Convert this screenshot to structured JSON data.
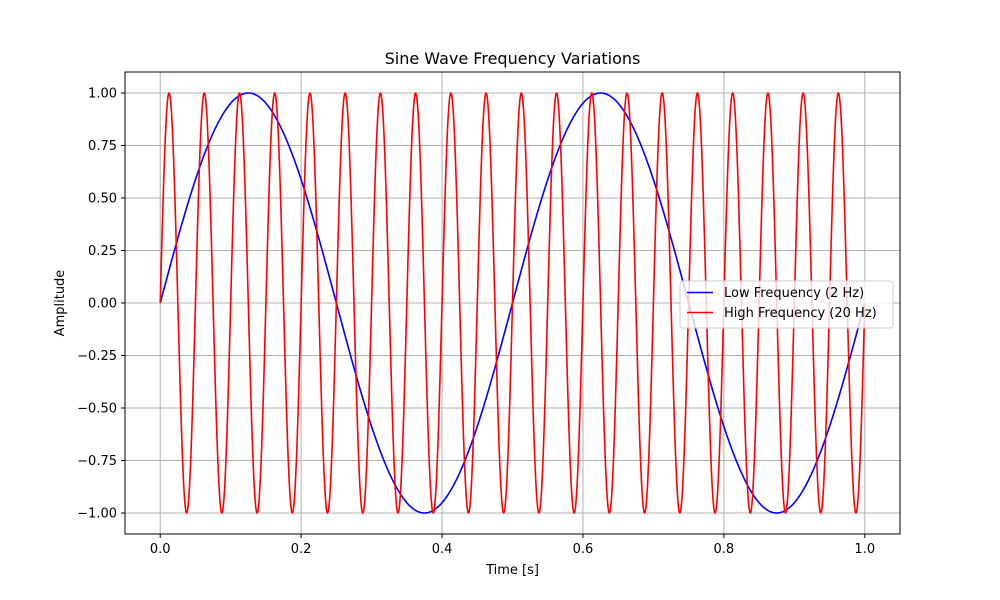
{
  "chart_data": {
    "type": "line",
    "title": "Sine Wave Frequency Variations",
    "xlabel": "Time [s]",
    "ylabel": "Amplitude",
    "xlim": [
      -0.05,
      1.05
    ],
    "ylim": [
      -1.1,
      1.1
    ],
    "grid": true,
    "legend_position": "center-right",
    "x_ticks": [
      {
        "value": 0.0,
        "label": "0.0"
      },
      {
        "value": 0.2,
        "label": "0.2"
      },
      {
        "value": 0.4,
        "label": "0.4"
      },
      {
        "value": 0.6,
        "label": "0.6"
      },
      {
        "value": 0.8,
        "label": "0.8"
      },
      {
        "value": 1.0,
        "label": "1.0"
      }
    ],
    "y_ticks": [
      {
        "value": 1.0,
        "label": "1.00"
      },
      {
        "value": 0.75,
        "label": "0.75"
      },
      {
        "value": 0.5,
        "label": "0.50"
      },
      {
        "value": 0.25,
        "label": "0.25"
      },
      {
        "value": 0.0,
        "label": "0.00"
      },
      {
        "value": -0.25,
        "label": "−0.25"
      },
      {
        "value": -0.5,
        "label": "−0.50"
      },
      {
        "value": -0.75,
        "label": "−0.75"
      },
      {
        "value": -1.0,
        "label": "−1.00"
      }
    ],
    "series": [
      {
        "name": "Low Frequency (2 Hz)",
        "color": "#0000ff",
        "function": "sin",
        "frequency_hz": 2,
        "amplitude": 1,
        "x_range": [
          0,
          1
        ]
      },
      {
        "name": "High Frequency (20 Hz)",
        "color": "#ff0000",
        "function": "sin",
        "frequency_hz": 20,
        "amplitude": 1,
        "x_range": [
          0,
          1
        ]
      }
    ]
  },
  "colors": {
    "grid": "#b0b0b0",
    "axes": "#000000",
    "legend_border": "#cccccc"
  }
}
